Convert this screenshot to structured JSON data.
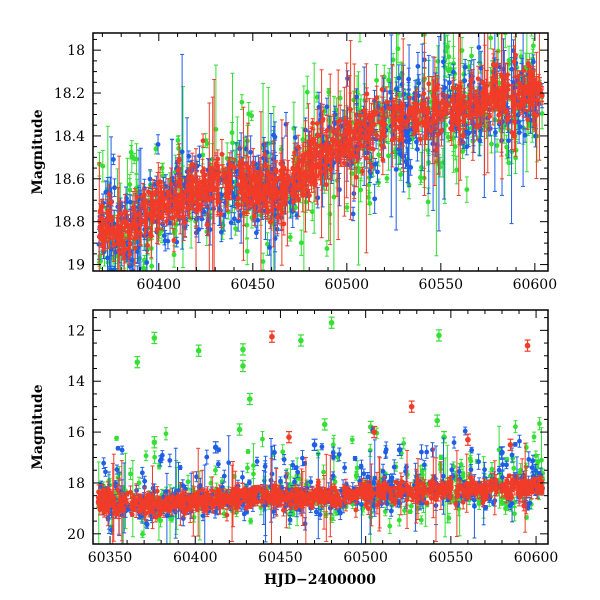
{
  "colors": {
    "green": "#33e033",
    "blue": "#1f5fe6",
    "red": "#f03c28"
  },
  "chart_data": [
    {
      "type": "scatter",
      "xlabel": "",
      "ylabel": "Magnitude",
      "xlim": [
        60365,
        60607
      ],
      "ylim": [
        19.03,
        17.92
      ],
      "y_inverted": true,
      "xticks": [
        60400,
        60450,
        60500,
        60550,
        60600
      ],
      "yticks": [
        18,
        18.2,
        18.4,
        18.6,
        18.8,
        19
      ],
      "ytick_labels": [
        "18",
        "18.2",
        "18.4",
        "18.6",
        "18.8",
        "19"
      ],
      "error_bars": true,
      "series": [
        {
          "color": "green"
        },
        {
          "color": "blue"
        },
        {
          "color": "red"
        }
      ],
      "trend": [
        [
          60365,
          18.82
        ],
        [
          60380,
          18.86
        ],
        [
          60400,
          18.72
        ],
        [
          60420,
          18.66
        ],
        [
          60440,
          18.6
        ],
        [
          60460,
          18.66
        ],
        [
          60470,
          18.62
        ],
        [
          60485,
          18.5
        ],
        [
          60500,
          18.42
        ],
        [
          60520,
          18.35
        ],
        [
          60540,
          18.3
        ],
        [
          60560,
          18.27
        ],
        [
          60580,
          18.22
        ],
        [
          60607,
          18.2
        ]
      ]
    },
    {
      "type": "scatter",
      "xlabel": "HJD−2400000",
      "ylabel": "Magnitude",
      "xlim": [
        60340,
        60607
      ],
      "ylim": [
        20.4,
        11.2
      ],
      "y_inverted": true,
      "xticks": [
        60350,
        60400,
        60450,
        60500,
        60550,
        60600
      ],
      "yticks": [
        12,
        14,
        16,
        18,
        20
      ],
      "ytick_labels": [
        "12",
        "14",
        "16",
        "18",
        "20"
      ],
      "error_bars": true,
      "series": [
        {
          "color": "green",
          "outliers": [
            [
              60366,
              13.25
            ],
            [
              60376,
              12.3
            ],
            [
              60402,
              12.8
            ],
            [
              60428,
              12.75
            ],
            [
              60428,
              13.4
            ],
            [
              60432,
              14.7
            ],
            [
              60462,
              12.4
            ],
            [
              60480,
              11.7
            ],
            [
              60543,
              12.2
            ],
            [
              60542,
              15.55
            ],
            [
              60376,
              16.4
            ],
            [
              60426,
              15.9
            ],
            [
              60476,
              15.7
            ],
            [
              60503,
              15.8
            ],
            [
              60546,
              16.2
            ]
          ]
        },
        {
          "color": "blue",
          "outliers": [
            [
              60412,
              16.6
            ],
            [
              60470,
              16.5
            ],
            [
              60520,
              16.7
            ],
            [
              60580,
              16.8
            ]
          ]
        },
        {
          "color": "red",
          "outliers": [
            [
              60445,
              12.25
            ],
            [
              60527,
              15.0
            ],
            [
              60595,
              12.6
            ],
            [
              60585,
              16.5
            ],
            [
              60455,
              16.2
            ],
            [
              60505,
              16.0
            ],
            [
              60560,
              16.3
            ]
          ]
        }
      ],
      "trend": [
        [
          60345,
          18.75
        ],
        [
          60370,
          18.9
        ],
        [
          60400,
          18.7
        ],
        [
          60440,
          18.55
        ],
        [
          60470,
          18.6
        ],
        [
          60500,
          18.4
        ],
        [
          60550,
          18.25
        ],
        [
          60607,
          18.15
        ]
      ]
    }
  ]
}
